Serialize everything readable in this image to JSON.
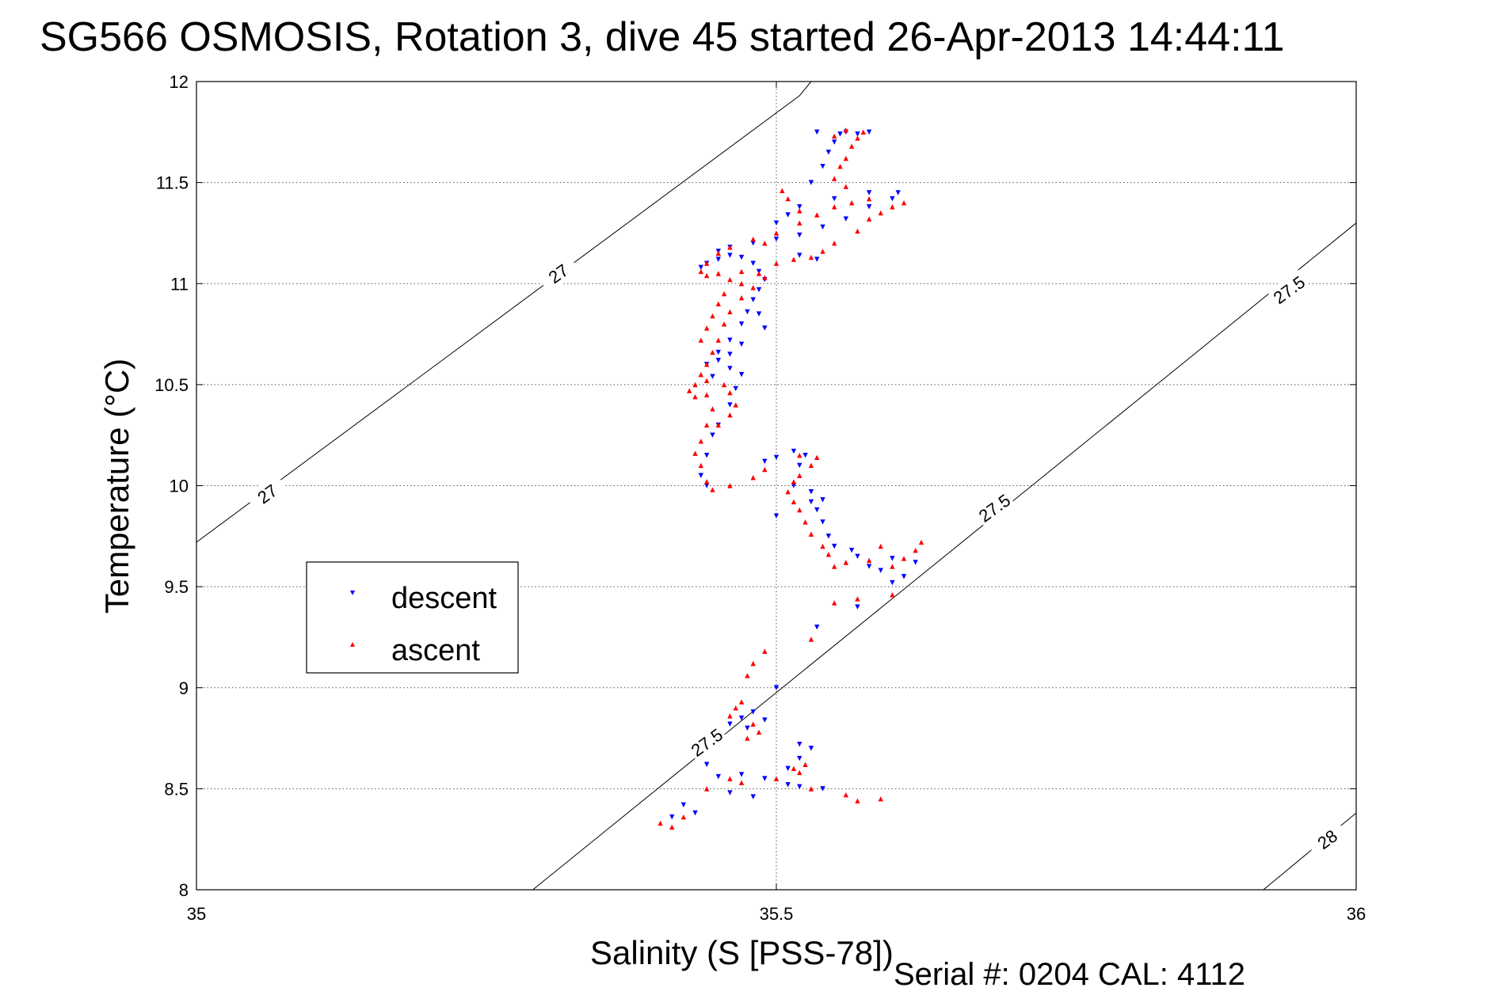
{
  "chart_data": {
    "type": "scatter",
    "title": "SG566 OSMOSIS, Rotation 3, dive 45 started 26-Apr-2013 14:44:11",
    "xlabel": "Salinity (S [PSS-78])",
    "ylabel": "Temperature (°C)",
    "xlim": [
      35,
      36
    ],
    "ylim": [
      8,
      12
    ],
    "x_ticks": [
      "35",
      "35.5",
      "36"
    ],
    "y_ticks": [
      "8",
      "8.5",
      "9",
      "9.5",
      "10",
      "10.5",
      "11",
      "11.5",
      "12"
    ],
    "grid": true,
    "legend_position": "middle-left",
    "footer": "Serial #: 0204  CAL: 4112",
    "contours": [
      {
        "label": "27",
        "points": [
          [
            35.0,
            9.72
          ],
          [
            35.52,
            11.93
          ],
          [
            35.53,
            12.0
          ]
        ]
      },
      {
        "label": "27.5",
        "points": [
          [
            35.29,
            8.0
          ],
          [
            36.0,
            11.3
          ]
        ]
      },
      {
        "label": "28",
        "points": [
          [
            35.92,
            8.0
          ],
          [
            36.0,
            8.38
          ]
        ]
      }
    ],
    "contour_labels": [
      {
        "text": "27",
        "x": 35.312,
        "y": 11.05,
        "angle": -36
      },
      {
        "text": "27",
        "x": 35.061,
        "y": 9.96,
        "angle": -36
      },
      {
        "text": "27.5",
        "x": 35.942,
        "y": 10.97,
        "angle": -36
      },
      {
        "text": "27.5",
        "x": 35.688,
        "y": 9.89,
        "angle": -36
      },
      {
        "text": "27.5",
        "x": 35.44,
        "y": 8.73,
        "angle": -36
      },
      {
        "text": "28",
        "x": 35.975,
        "y": 8.25,
        "angle": -36
      }
    ],
    "series": [
      {
        "name": "descent",
        "color": "#0000ff",
        "marker": "triangle-down",
        "points": [
          [
            35.44,
            8.62
          ],
          [
            35.45,
            8.56
          ],
          [
            35.47,
            8.57
          ],
          [
            35.49,
            8.55
          ],
          [
            35.51,
            8.52
          ],
          [
            35.52,
            8.51
          ],
          [
            35.54,
            8.5
          ],
          [
            35.42,
            8.42
          ],
          [
            35.43,
            8.38
          ],
          [
            35.41,
            8.36
          ],
          [
            35.46,
            8.48
          ],
          [
            35.48,
            8.46
          ],
          [
            35.53,
            8.7
          ],
          [
            35.52,
            8.65
          ],
          [
            35.51,
            8.6
          ],
          [
            35.52,
            8.72
          ],
          [
            35.46,
            8.82
          ],
          [
            35.47,
            8.85
          ],
          [
            35.48,
            8.88
          ],
          [
            35.49,
            8.84
          ],
          [
            35.475,
            8.8
          ],
          [
            35.5,
            9.0
          ],
          [
            35.535,
            9.3
          ],
          [
            35.57,
            9.4
          ],
          [
            35.58,
            9.6
          ],
          [
            35.61,
            9.55
          ],
          [
            35.62,
            9.62
          ],
          [
            35.59,
            9.58
          ],
          [
            35.6,
            9.64
          ],
          [
            35.57,
            9.65
          ],
          [
            35.55,
            9.7
          ],
          [
            35.545,
            9.75
          ],
          [
            35.54,
            9.82
          ],
          [
            35.535,
            9.88
          ],
          [
            35.53,
            9.92
          ],
          [
            35.515,
            10.0
          ],
          [
            35.52,
            10.1
          ],
          [
            35.525,
            10.15
          ],
          [
            35.515,
            10.17
          ],
          [
            35.5,
            10.14
          ],
          [
            35.49,
            10.12
          ],
          [
            35.44,
            10.0
          ],
          [
            35.435,
            10.05
          ],
          [
            35.44,
            10.15
          ],
          [
            35.445,
            10.25
          ],
          [
            35.45,
            10.3
          ],
          [
            35.46,
            10.4
          ],
          [
            35.465,
            10.48
          ],
          [
            35.47,
            10.55
          ],
          [
            35.46,
            10.58
          ],
          [
            35.445,
            10.54
          ],
          [
            35.44,
            10.6
          ],
          [
            35.45,
            10.66
          ],
          [
            35.46,
            10.72
          ],
          [
            35.47,
            10.8
          ],
          [
            35.475,
            10.86
          ],
          [
            35.48,
            10.92
          ],
          [
            35.485,
            10.97
          ],
          [
            35.49,
            11.02
          ],
          [
            35.485,
            11.06
          ],
          [
            35.48,
            11.1
          ],
          [
            35.47,
            11.13
          ],
          [
            35.46,
            11.14
          ],
          [
            35.45,
            11.12
          ],
          [
            35.44,
            11.1
          ],
          [
            35.435,
            11.08
          ],
          [
            35.45,
            11.16
          ],
          [
            35.46,
            11.18
          ],
          [
            35.48,
            11.2
          ],
          [
            35.5,
            11.22
          ],
          [
            35.52,
            11.24
          ],
          [
            35.54,
            11.28
          ],
          [
            35.56,
            11.32
          ],
          [
            35.58,
            11.38
          ],
          [
            35.6,
            11.42
          ],
          [
            35.605,
            11.45
          ],
          [
            35.58,
            11.45
          ],
          [
            35.55,
            11.42
          ],
          [
            35.535,
            11.12
          ],
          [
            35.52,
            11.14
          ],
          [
            35.5,
            11.3
          ],
          [
            35.51,
            11.34
          ],
          [
            35.52,
            11.38
          ],
          [
            35.53,
            11.5
          ],
          [
            35.54,
            11.58
          ],
          [
            35.545,
            11.65
          ],
          [
            35.55,
            11.7
          ],
          [
            35.555,
            11.74
          ],
          [
            35.56,
            11.75
          ],
          [
            35.535,
            11.75
          ],
          [
            35.57,
            11.74
          ],
          [
            35.58,
            11.75
          ],
          [
            35.485,
            10.85
          ],
          [
            35.49,
            10.78
          ],
          [
            35.47,
            10.7
          ],
          [
            35.46,
            10.65
          ],
          [
            35.45,
            10.62
          ],
          [
            35.53,
            9.97
          ],
          [
            35.54,
            9.93
          ],
          [
            35.5,
            9.85
          ],
          [
            35.565,
            9.68
          ],
          [
            35.6,
            9.52
          ]
        ]
      },
      {
        "name": "ascent",
        "color": "#ff0000",
        "marker": "triangle-up",
        "points": [
          [
            35.4,
            8.33
          ],
          [
            35.41,
            8.31
          ],
          [
            35.42,
            8.36
          ],
          [
            35.44,
            8.5
          ],
          [
            35.46,
            8.55
          ],
          [
            35.47,
            8.53
          ],
          [
            35.5,
            8.55
          ],
          [
            35.53,
            8.5
          ],
          [
            35.56,
            8.47
          ],
          [
            35.57,
            8.44
          ],
          [
            35.59,
            8.45
          ],
          [
            35.52,
            8.58
          ],
          [
            35.525,
            8.62
          ],
          [
            35.515,
            8.6
          ],
          [
            35.46,
            8.86
          ],
          [
            35.465,
            8.9
          ],
          [
            35.47,
            8.93
          ],
          [
            35.48,
            8.82
          ],
          [
            35.475,
            8.75
          ],
          [
            35.485,
            8.78
          ],
          [
            35.475,
            9.06
          ],
          [
            35.48,
            9.12
          ],
          [
            35.49,
            9.18
          ],
          [
            35.53,
            9.24
          ],
          [
            35.55,
            9.42
          ],
          [
            35.57,
            9.44
          ],
          [
            35.6,
            9.46
          ],
          [
            35.6,
            9.6
          ],
          [
            35.61,
            9.64
          ],
          [
            35.62,
            9.68
          ],
          [
            35.625,
            9.72
          ],
          [
            35.59,
            9.7
          ],
          [
            35.58,
            9.63
          ],
          [
            35.56,
            9.62
          ],
          [
            35.55,
            9.6
          ],
          [
            35.545,
            9.66
          ],
          [
            35.54,
            9.7
          ],
          [
            35.53,
            9.76
          ],
          [
            35.525,
            9.82
          ],
          [
            35.52,
            9.88
          ],
          [
            35.515,
            9.92
          ],
          [
            35.51,
            9.97
          ],
          [
            35.515,
            10.02
          ],
          [
            35.52,
            10.05
          ],
          [
            35.53,
            10.1
          ],
          [
            35.535,
            10.14
          ],
          [
            35.52,
            10.15
          ],
          [
            35.49,
            10.08
          ],
          [
            35.48,
            10.04
          ],
          [
            35.46,
            10.0
          ],
          [
            35.445,
            9.98
          ],
          [
            35.44,
            10.02
          ],
          [
            35.435,
            10.1
          ],
          [
            35.43,
            10.16
          ],
          [
            35.435,
            10.22
          ],
          [
            35.44,
            10.3
          ],
          [
            35.445,
            10.38
          ],
          [
            35.43,
            10.44
          ],
          [
            35.425,
            10.47
          ],
          [
            35.43,
            10.5
          ],
          [
            35.44,
            10.52
          ],
          [
            35.455,
            10.5
          ],
          [
            35.46,
            10.46
          ],
          [
            35.465,
            10.4
          ],
          [
            35.46,
            10.35
          ],
          [
            35.45,
            10.3
          ],
          [
            35.44,
            10.45
          ],
          [
            35.435,
            10.55
          ],
          [
            35.44,
            10.6
          ],
          [
            35.445,
            10.66
          ],
          [
            35.45,
            10.72
          ],
          [
            35.455,
            10.8
          ],
          [
            35.46,
            10.86
          ],
          [
            35.47,
            10.93
          ],
          [
            35.48,
            10.98
          ],
          [
            35.49,
            11.03
          ],
          [
            35.485,
            11.05
          ],
          [
            35.47,
            11.06
          ],
          [
            35.45,
            11.05
          ],
          [
            35.44,
            11.04
          ],
          [
            35.435,
            11.06
          ],
          [
            35.44,
            11.1
          ],
          [
            35.45,
            11.15
          ],
          [
            35.46,
            11.18
          ],
          [
            35.48,
            11.22
          ],
          [
            35.5,
            11.25
          ],
          [
            35.52,
            11.3
          ],
          [
            35.535,
            11.34
          ],
          [
            35.55,
            11.38
          ],
          [
            35.565,
            11.4
          ],
          [
            35.58,
            11.42
          ],
          [
            35.56,
            11.48
          ],
          [
            35.55,
            11.52
          ],
          [
            35.555,
            11.58
          ],
          [
            35.56,
            11.62
          ],
          [
            35.565,
            11.68
          ],
          [
            35.57,
            11.72
          ],
          [
            35.575,
            11.75
          ],
          [
            35.56,
            11.76
          ],
          [
            35.55,
            11.73
          ],
          [
            35.52,
            11.36
          ],
          [
            35.51,
            11.42
          ],
          [
            35.505,
            11.46
          ],
          [
            35.49,
            11.2
          ],
          [
            35.5,
            11.1
          ],
          [
            35.515,
            11.12
          ],
          [
            35.53,
            11.13
          ],
          [
            35.54,
            11.16
          ],
          [
            35.55,
            11.2
          ],
          [
            35.57,
            11.26
          ],
          [
            35.58,
            11.32
          ],
          [
            35.59,
            11.35
          ],
          [
            35.6,
            11.38
          ],
          [
            35.61,
            11.4
          ],
          [
            35.47,
            11.0
          ],
          [
            35.46,
            11.02
          ],
          [
            35.455,
            10.95
          ],
          [
            35.45,
            10.9
          ],
          [
            35.445,
            10.84
          ],
          [
            35.44,
            10.78
          ],
          [
            35.435,
            10.72
          ]
        ]
      }
    ]
  }
}
